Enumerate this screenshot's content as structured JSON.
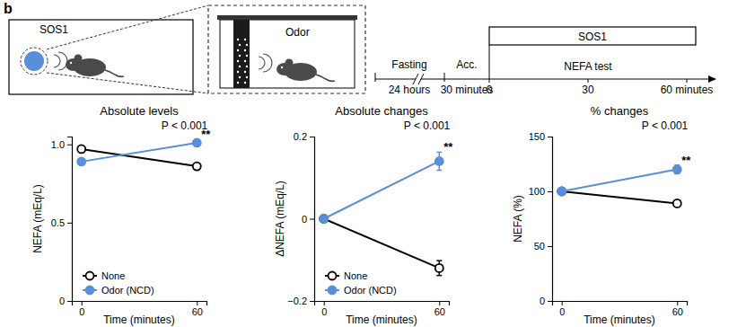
{
  "panel_label": "b",
  "schematic": {
    "left_label": "SOS1",
    "inset_label": "Odor"
  },
  "timeline": {
    "phases": [
      {
        "label": "Fasting",
        "duration": "24 hours"
      },
      {
        "label": "Acc.",
        "duration": "30 minutes"
      }
    ],
    "treatment": "SOS1",
    "test": "NEFA test",
    "tick_labels": [
      "0",
      "30",
      "60 minutes"
    ]
  },
  "chart_data": [
    {
      "type": "line",
      "title": "Absolute levels",
      "x_label": "Time (minutes)",
      "y_label": "NEFA (mEq/L)",
      "x": [
        0,
        60
      ],
      "xlim": [
        -5,
        65
      ],
      "xticks": [
        0,
        60
      ],
      "ylim": [
        0,
        1.05
      ],
      "yticks": [
        0,
        0.5,
        {
          "value": 1,
          "label": "1.0"
        }
      ],
      "series": [
        {
          "name": "None",
          "color": "#000000",
          "marker": "open_circle",
          "values": [
            0.97,
            0.86
          ],
          "errors": [
            0.01,
            0.015
          ]
        },
        {
          "name": "Odor (NCD)",
          "color": "#5b8ed8",
          "marker": "filled_circle",
          "values": [
            0.89,
            1.01
          ],
          "errors": [
            0.01,
            0.02
          ]
        }
      ],
      "annotations": [
        "P < 0.001",
        "**"
      ],
      "legend": "lower left"
    },
    {
      "type": "line",
      "title": "Absolute changes",
      "x_label": "Time (minutes)",
      "y_label": "ΔNEFA (mEq/L)",
      "x": [
        0,
        60
      ],
      "xlim": [
        -5,
        65
      ],
      "xticks": [
        0,
        60
      ],
      "ylim": [
        -0.2,
        0.2
      ],
      "yticks": [
        {
          "value": -0.2,
          "label": "−0.2"
        },
        0,
        0.2
      ],
      "series": [
        {
          "name": "None",
          "color": "#000000",
          "marker": "open_circle",
          "values": [
            0,
            -0.12
          ],
          "errors": [
            0,
            0.018
          ]
        },
        {
          "name": "Odor (NCD)",
          "color": "#5b8ed8",
          "marker": "filled_circle",
          "values": [
            0,
            0.14
          ],
          "errors": [
            0,
            0.022
          ]
        }
      ],
      "annotations": [
        "P < 0.001",
        "**"
      ],
      "legend": "lower left"
    },
    {
      "type": "line",
      "title": "% changes",
      "x_label": "Time (minutes)",
      "y_label": "NEFA (%)",
      "x": [
        0,
        60
      ],
      "xlim": [
        -5,
        65
      ],
      "xticks": [
        0,
        60
      ],
      "ylim": [
        0,
        150
      ],
      "yticks": [
        0,
        50,
        100,
        150
      ],
      "series": [
        {
          "color": "#000000",
          "marker": "open_circle",
          "values": [
            100,
            89
          ],
          "errors": [
            0,
            3
          ]
        },
        {
          "color": "#5b8ed8",
          "marker": "filled_circle",
          "values": [
            100,
            120
          ],
          "errors": [
            0,
            4
          ]
        }
      ],
      "annotations": [
        "P < 0.001",
        "**"
      ]
    }
  ]
}
